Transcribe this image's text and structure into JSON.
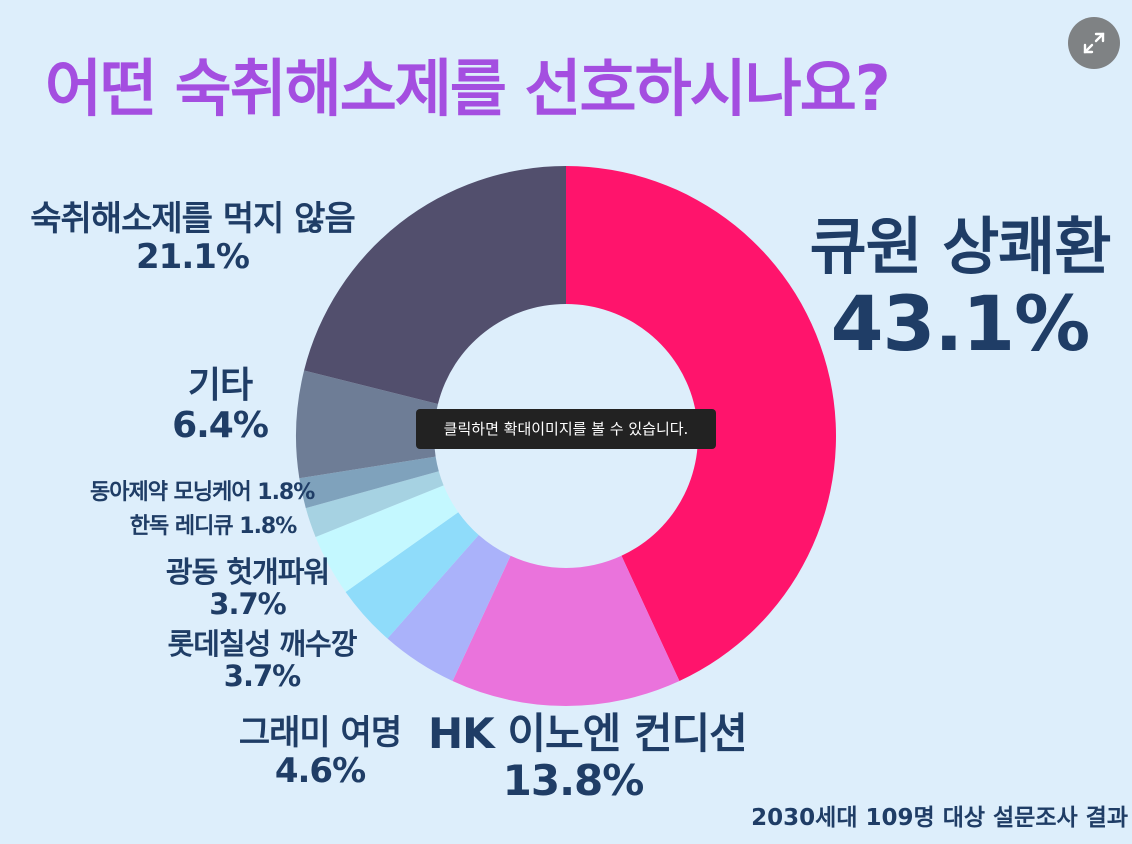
{
  "chart_data": {
    "type": "pie",
    "title": "어떤 숙취해소제를 선호하시나요?",
    "categories": [
      "큐원 상쾌환",
      "HK 이노엔 컨디션",
      "그래미 여명",
      "롯데칠성 깨수깡",
      "광동 헛개파워",
      "한독 레디큐",
      "동아제약 모닝케어",
      "기타",
      "숙취해소제를 먹지 않음"
    ],
    "values": [
      43.1,
      13.8,
      4.6,
      3.7,
      3.7,
      1.8,
      1.8,
      6.4,
      21.1
    ],
    "value_labels": [
      "43.1%",
      "13.8%",
      "4.6%",
      "3.7%",
      "3.7%",
      "1.8%",
      "1.8%",
      "6.4%",
      "21.1%"
    ],
    "colors": [
      "#ff146c",
      "#ea73dc",
      "#aab2fa",
      "#8fdcfa",
      "#c4f8ff",
      "#a6d2e2",
      "#7fa2bc",
      "#6e7d96",
      "#524f6d"
    ],
    "donut": true,
    "start_angle": "12-o'clock, clockwise",
    "source_note": "2030세대 109명 대상 설문조사 결과"
  },
  "overlay": {
    "tooltip": "클릭하면 확대이미지를 볼 수 있습니다.",
    "expand_icon": "expand-arrows-icon"
  }
}
